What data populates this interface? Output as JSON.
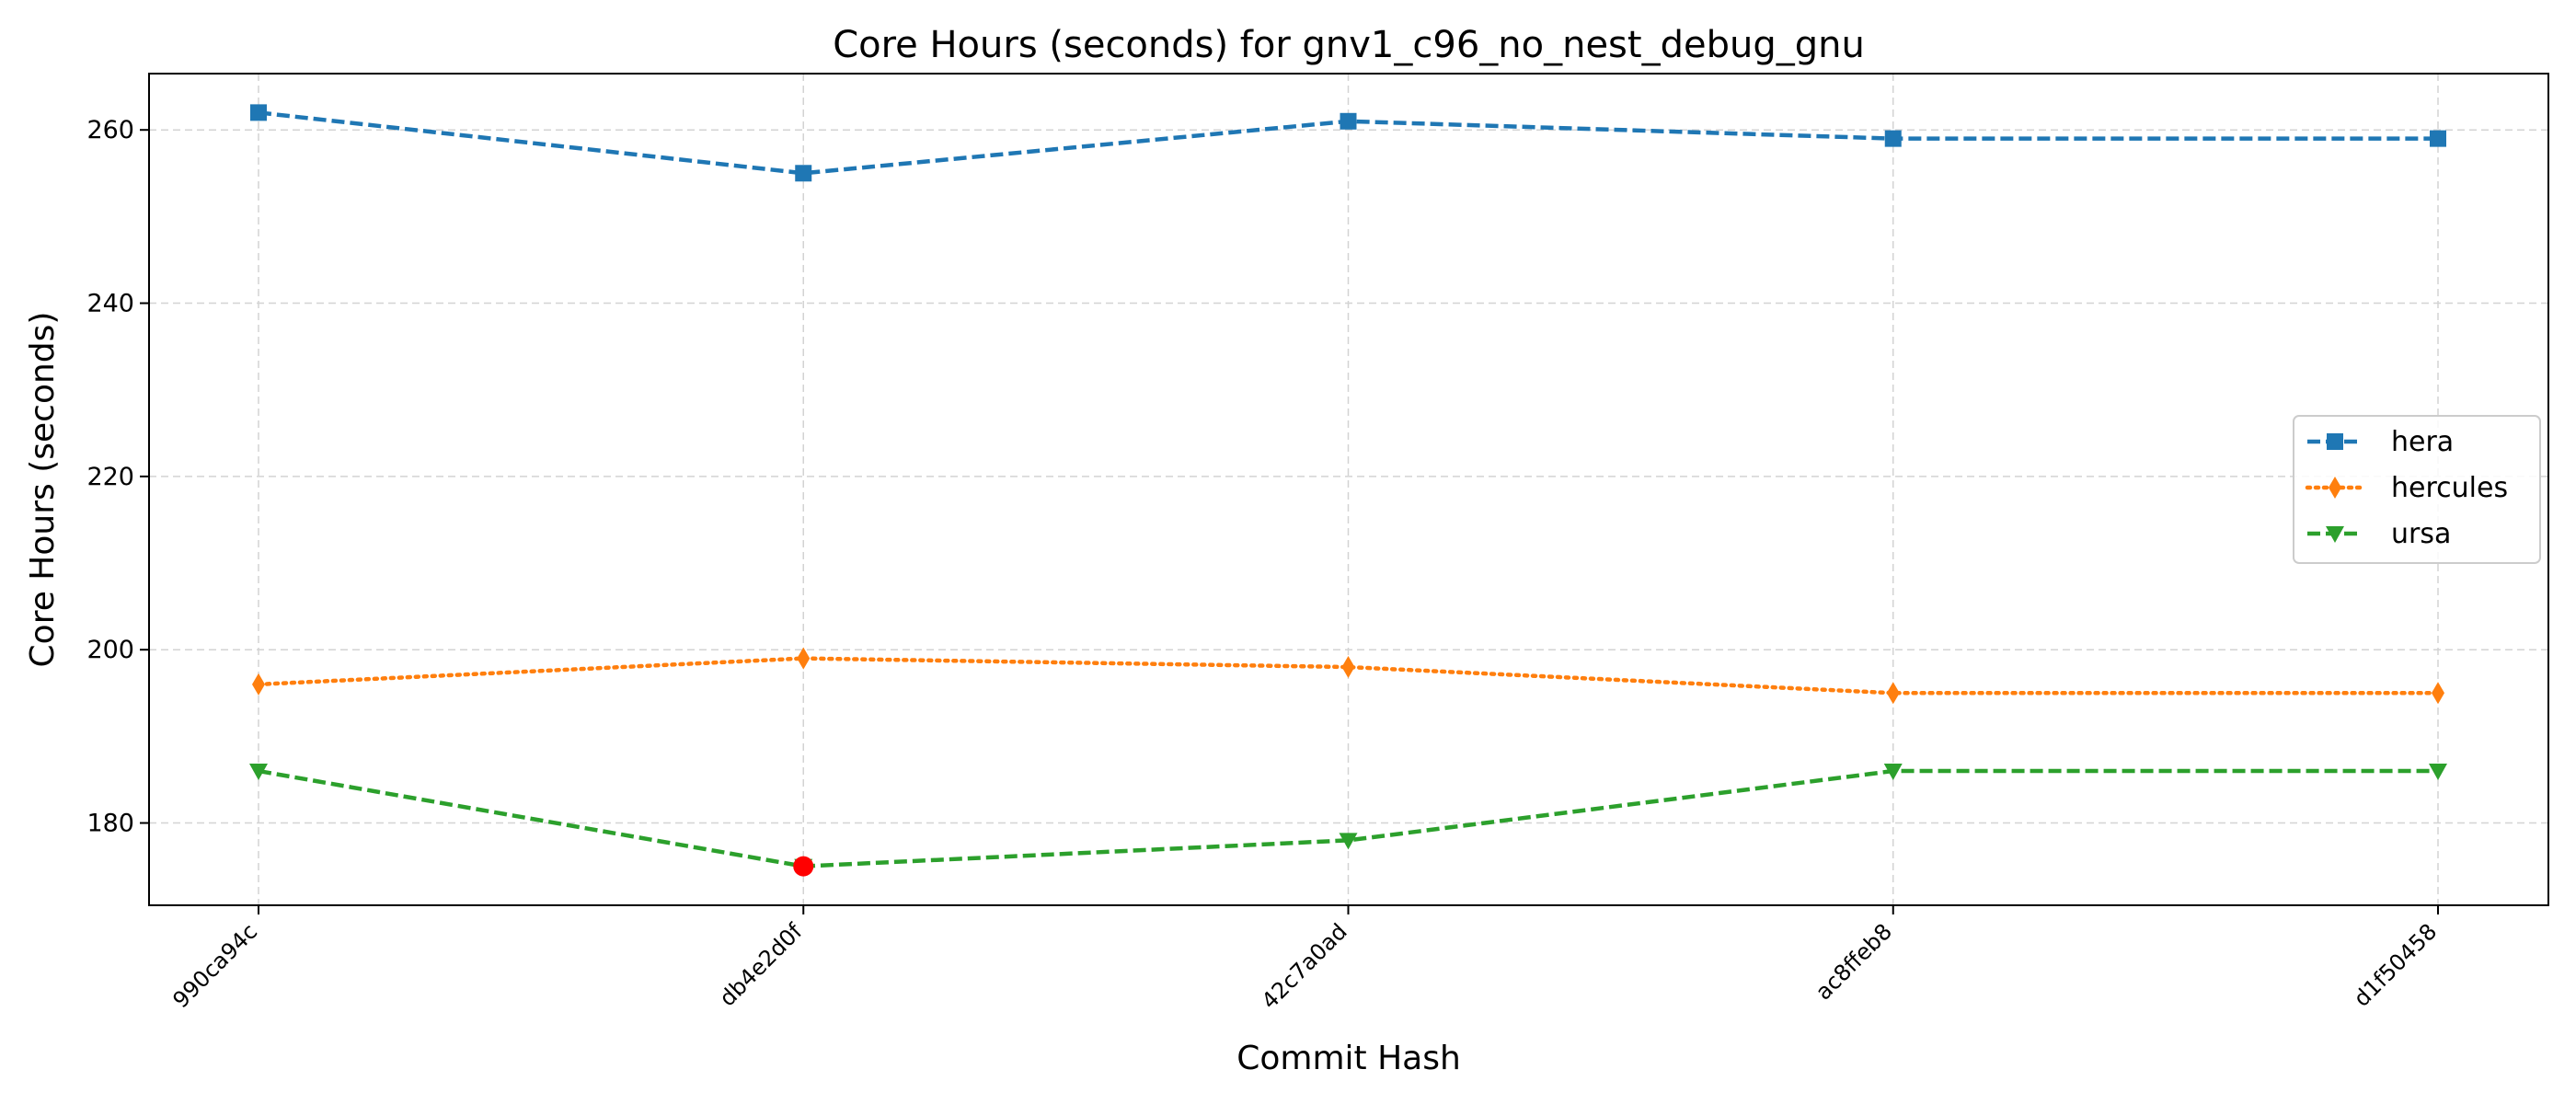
{
  "chart_data": {
    "type": "line",
    "title": "Core Hours (seconds) for gnv1_c96_no_nest_debug_gnu",
    "xlabel": "Commit Hash",
    "ylabel": "Core Hours (seconds)",
    "categories": [
      "990ca94c",
      "db4e2d0f",
      "42c7a0ad",
      "ac8ffeb8",
      "d1f50458"
    ],
    "ylim": [
      170.5,
      266.5
    ],
    "yticks": [
      180,
      200,
      220,
      240,
      260
    ],
    "grid": true,
    "legend_position": "center-right",
    "series": [
      {
        "name": "hera",
        "values": [
          262,
          255,
          261,
          259,
          259
        ],
        "color": "#1f77b4",
        "marker": "square",
        "linestyle": "dashed"
      },
      {
        "name": "hercules",
        "values": [
          196,
          199,
          198,
          195,
          195
        ],
        "color": "#ff7f0e",
        "marker": "thin-diamond",
        "linestyle": "dotted"
      },
      {
        "name": "ursa",
        "values": [
          186,
          175,
          178,
          186,
          186
        ],
        "color": "#2ca02c",
        "marker": "triangle-down",
        "linestyle": "dashed"
      }
    ],
    "highlighted_points": [
      {
        "series": "ursa",
        "category": "db4e2d0f",
        "value": 175,
        "color": "#ff0000"
      }
    ]
  }
}
